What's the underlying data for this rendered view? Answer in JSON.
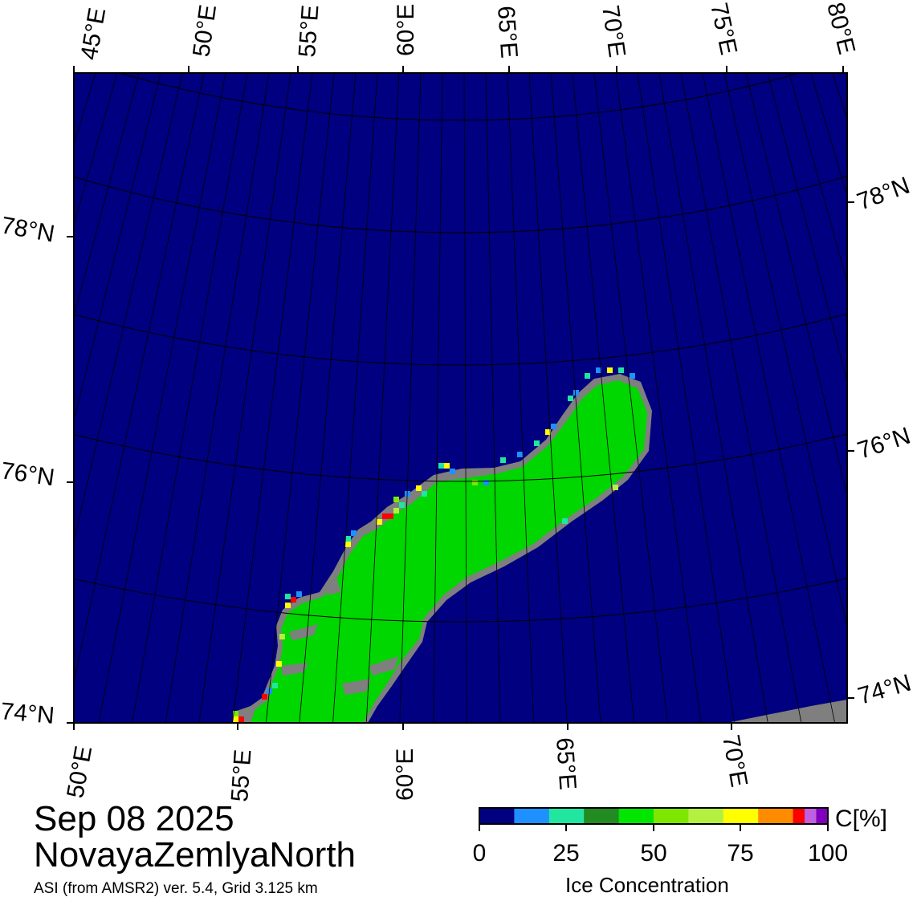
{
  "header": {
    "date": "Sep 08 2025",
    "region": "NovayaZemlyaNorth",
    "source": "ASI (from AMSR2) ver. 5.4,  Grid 3.125 km"
  },
  "colorbar": {
    "unit": "C[%]",
    "title": "Ice Concentration",
    "tick_labels": [
      "0",
      "25",
      "50",
      "75",
      "100"
    ],
    "colors": [
      "#000080",
      "#1e90ff",
      "#20e6a0",
      "#228b22",
      "#00e600",
      "#7fe600",
      "#b4f040",
      "#ffff00",
      "#ff8c00",
      "#ff0000",
      "#c060e0",
      "#8000c0"
    ]
  },
  "map": {
    "colors": {
      "ocean": "#000080",
      "land": "#00d600",
      "coast": "#7f7f7f"
    },
    "top_lon_labels": [
      "45°E",
      "50°E",
      "55°E",
      "60°E",
      "65°E",
      "70°E",
      "75°E",
      "80°E"
    ],
    "bottom_lon_labels": [
      "50°E",
      "55°E",
      "60°E",
      "65°E",
      "70°E"
    ],
    "left_lat_labels": [
      "78°N",
      "76°N",
      "74°N"
    ],
    "right_lat_labels": [
      "78°N",
      "76°N",
      "74°N"
    ]
  }
}
